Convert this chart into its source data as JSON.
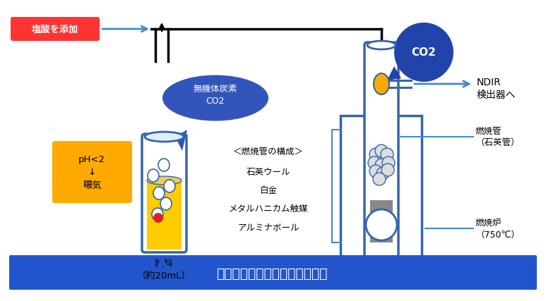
{
  "bg_color": "#ffffff",
  "labels": {
    "hcl_add": "塩酸を添加",
    "inorganic_carbon": "無機体炭素\nCO2",
    "sample": "試料\n（約20mL）",
    "ph_label": "pH<2\n↓\n曝気",
    "tube_composition_title": "＜燃焼管の構成＞",
    "tube_composition_items": [
      "石英ウール",
      "白金",
      "メタルハニカム触媒",
      "アルミナボール"
    ],
    "combustion_tube": "燃焼管\n（石英管）",
    "furnace": "燃焼炉\n（750℃）",
    "ndir": "NDIR\n検出器へ",
    "co2": "CO2",
    "warning": "注意！揮発性成分は損なわれる"
  },
  "colors": {
    "hcl_bg": "#ff3333",
    "hcl_text": "#ffffff",
    "ph_bg": "#ffaa00",
    "ph_text": "#000000",
    "speech_bubble": "#3355bb",
    "speech_bubble_text": "#ffffff",
    "tube_fill": "#ffcc00",
    "tube_stroke": "#3366aa",
    "furnace_box_stroke": "#3366aa",
    "furnace_fill": "#aabbdd",
    "catalyst_fill": "#888888",
    "co2_bubble": "#2244aa",
    "co2_text": "#ffffff",
    "arrow_blue": "#4488cc",
    "arrow_black": "#000000",
    "warning_bg": "#2255cc",
    "warning_text": "#ffffff",
    "droplet_red": "#dd2222",
    "droplet_white": "#ffffff",
    "droplet_orange": "#ffaa00",
    "wool_color": "#dddddd",
    "pipe_color": "#000000",
    "annotation_line": "#4488cc"
  }
}
